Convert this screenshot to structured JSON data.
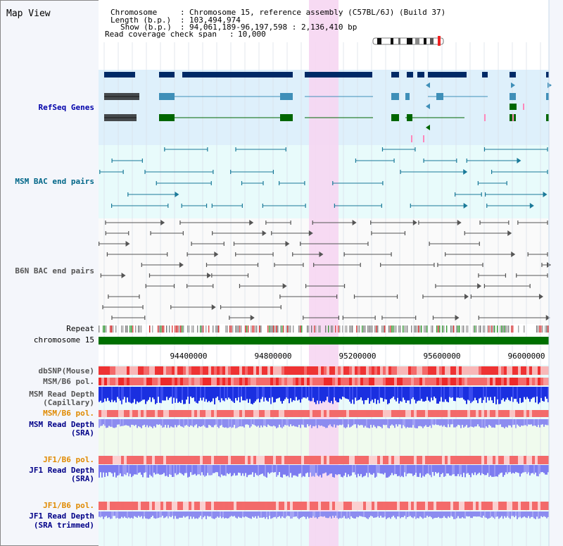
{
  "page": {
    "title": "Map View"
  },
  "info": {
    "chromosome_label": "Chromosome",
    "chromosome_value": "Chromosome 15, reference assembly (C57BL/6J) (Build 37)",
    "length_label": "Length (b.p.)",
    "length_value": "103,494,974",
    "show_label": "Show (b.p.)",
    "show_value": "94,061,189-96,197,598 : 2,136,410 bp",
    "coverage_label": "Read coverage check span",
    "coverage_value": "10,000"
  },
  "tracks": {
    "refseq": "RefSeq Genes",
    "msm_bac": "MSM BAC end pairs",
    "b6n_bac": "B6N BAC end pairs",
    "repeat": "Repeat",
    "chromosome": "chromosome 15",
    "dbsnp": "dbSNP(Mouse)",
    "msm_b6_pol_1": "MSM/B6 pol.",
    "msm_depth_cap_1": "MSM Read Depth",
    "msm_depth_cap_2": "(Capillary)",
    "msm_b6_pol_2": "MSM/B6 pol.",
    "msm_depth_sra_1": "MSM Read Depth",
    "msm_depth_sra_2": "(SRA)",
    "jf1_b6_pol_1": "JF1/B6 pol.",
    "jf1_depth_sra_1": "JF1 Read Depth",
    "jf1_depth_sra_2": "(SRA)",
    "jf1_b6_pol_2": "JF1/B6 pol.",
    "jf1_depth_trim_1": "JF1 Read Depth",
    "jf1_depth_trim_2": "(SRA trimmed)"
  },
  "axis": {
    "ticks": [
      "94400000",
      "94800000",
      "95200000",
      "95600000",
      "96000000"
    ]
  },
  "colors": {
    "refseq_label": "#0000aa",
    "msm_label": "#006688",
    "b6n_label": "#555555",
    "pol_orange": "#e08a00",
    "depth_blue": "#000088",
    "highlight": "#f6d6f2",
    "gene_dark": "#002a66",
    "gene_mid": "#3f8fb8",
    "gene_green": "#006600",
    "chrom_green": "#007000"
  }
}
